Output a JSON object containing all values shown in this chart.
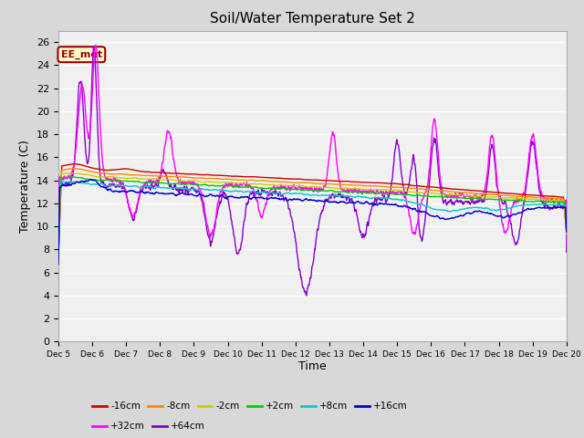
{
  "title": "Soil/Water Temperature Set 2",
  "xlabel": "Time",
  "ylabel": "Temperature (C)",
  "ylim": [
    0,
    27
  ],
  "yticks": [
    0,
    2,
    4,
    6,
    8,
    10,
    12,
    14,
    16,
    18,
    20,
    22,
    24,
    26
  ],
  "plot_bg_color": "#f0f0f0",
  "fig_bg_color": "#d8d8d8",
  "grid_color": "#ffffff",
  "annotation_text": "EE_met",
  "annotation_bg": "#ffffcc",
  "annotation_border": "#990000",
  "annotation_text_color": "#990000",
  "series_colors": {
    "-16cm": "#cc0000",
    "-8cm": "#ff8800",
    "-2cm": "#cccc00",
    "+2cm": "#00cc00",
    "+8cm": "#00cccc",
    "+16cm": "#0000cc",
    "+32cm": "#ff00ff",
    "+64cm": "#8800cc"
  },
  "legend_row1": [
    "-16cm",
    "-8cm",
    "-2cm",
    "+2cm",
    "+8cm",
    "+16cm"
  ],
  "legend_row2": [
    "+32cm",
    "+64cm"
  ],
  "xtick_labels": [
    "Dec 5",
    "Dec 6",
    "Dec 7",
    "Dec 8",
    "Dec 9",
    "Dec 10",
    "Dec 11",
    "Dec 12",
    "Dec 13",
    "Dec 14",
    "Dec 15",
    "Dec 16",
    "Dec 17",
    "Dec 18",
    "Dec 19",
    "Dec 20"
  ]
}
